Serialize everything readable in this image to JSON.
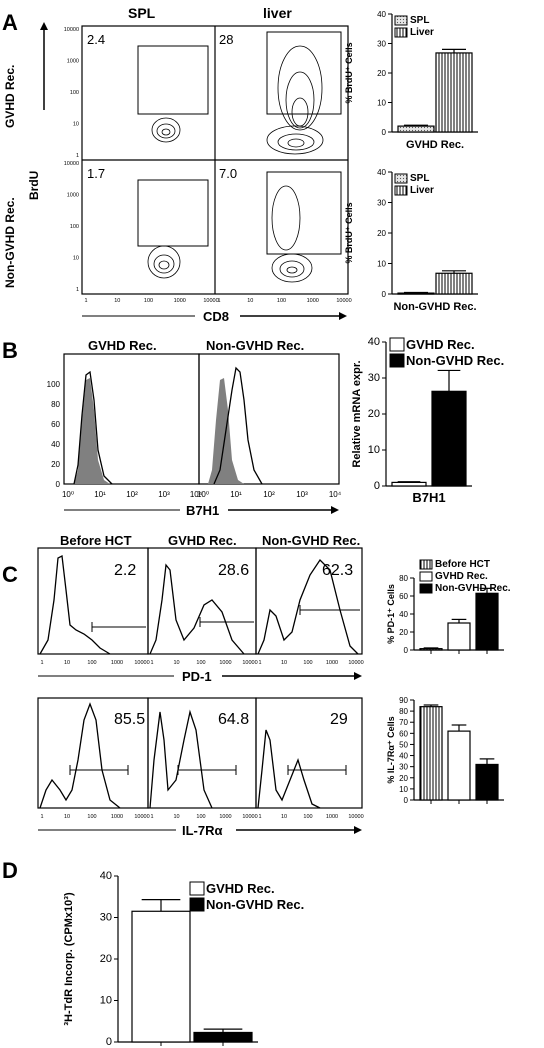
{
  "panels": {
    "A": {
      "letter": "A",
      "col_labels": [
        "SPL",
        "liver"
      ],
      "row_labels": [
        "GVHD Rec.",
        "Non-GVHD Rec."
      ],
      "y_axis_label": "BrdU",
      "x_axis_label": "CD8",
      "x_ticks": [
        "1",
        "10",
        "100",
        "1000",
        "10000"
      ],
      "y_ticks": [
        "10000",
        "1000",
        "100",
        "10",
        "1"
      ],
      "gate_pcts": [
        "2.4",
        "28",
        "1.7",
        "7.0"
      ]
    },
    "B": {
      "letter": "B",
      "col_labels": [
        "GVHD Rec.",
        "Non-GVHD Rec."
      ],
      "y_ticks": [
        "100",
        "80",
        "60",
        "40",
        "20",
        "0"
      ],
      "x_ticks": [
        "10⁰",
        "10¹",
        "10²",
        "10³",
        "10⁴",
        "10⁰",
        "10¹",
        "10²",
        "10³",
        "10⁴"
      ],
      "x_axis_label": "B7H1"
    },
    "C": {
      "letter": "C",
      "col_labels": [
        "Before HCT",
        "GVHD Rec.",
        "Non-GVHD Rec."
      ],
      "pd1_pcts": [
        "2.2",
        "28.6",
        "62.3"
      ],
      "il7_pcts": [
        "85.5",
        "64.8",
        "29"
      ],
      "pd1_label": "PD-1",
      "il7_label": "IL-7Rα",
      "x_ticks": [
        "1",
        "10",
        "100",
        "1000",
        "10000"
      ]
    },
    "D": {
      "letter": "D"
    }
  },
  "chart_data": [
    {
      "id": "A-top",
      "type": "bar",
      "categories": [
        "SPL",
        "Liver"
      ],
      "group_label": "GVHD Rec.",
      "values": [
        2,
        26.8
      ],
      "errors": [
        0.3,
        1.2
      ],
      "ylabel": "% BrdU⁺ Cells",
      "ylim": [
        0,
        40
      ],
      "yticks": [
        "0",
        "10",
        "20",
        "30",
        "40"
      ],
      "legend": [
        "SPL",
        "Liver"
      ],
      "colors": [
        "#d8d8d8",
        "#ffffff"
      ],
      "patterns": [
        "dots",
        "vlines"
      ]
    },
    {
      "id": "A-bottom",
      "type": "bar",
      "categories": [
        "SPL",
        "Liver"
      ],
      "group_label": "Non-GVHD Rec.",
      "values": [
        0.3,
        6.8
      ],
      "errors": [
        0.2,
        0.8
      ],
      "ylabel": "% BrdU⁺ Cells",
      "ylim": [
        0,
        40
      ],
      "yticks": [
        "0",
        "10",
        "20",
        "30",
        "40"
      ],
      "legend": [
        "SPL",
        "Liver"
      ],
      "colors": [
        "#d8d8d8",
        "#ffffff"
      ],
      "patterns": [
        "dots",
        "vlines"
      ]
    },
    {
      "id": "B",
      "type": "bar",
      "categories": [
        "GVHD Rec.",
        "Non-GVHD Rec."
      ],
      "group_label": "B7H1",
      "values": [
        1,
        26.3
      ],
      "errors": [
        0.2,
        5.8
      ],
      "ylabel": "Relative mRNA expr.",
      "ylim": [
        0,
        40
      ],
      "yticks": [
        "0",
        "10",
        "20",
        "30",
        "40"
      ],
      "legend": [
        "GVHD Rec.",
        "Non-GVHD Rec."
      ],
      "colors": [
        "#ffffff",
        "#000000"
      ],
      "patterns": [
        "solid",
        "solid"
      ]
    },
    {
      "id": "C-top",
      "type": "bar",
      "categories": [
        "Before HCT",
        "GVHD Rec.",
        "Non-GVHD Rec."
      ],
      "group_label": "",
      "values": [
        1.5,
        30,
        63
      ],
      "errors": [
        0.8,
        4,
        5.5
      ],
      "ylabel": "% PD-1⁺ Cells",
      "ylim": [
        0,
        80
      ],
      "yticks": [
        "0",
        "20",
        "40",
        "60",
        "80"
      ],
      "legend": [
        "Before HCT",
        "GVHD Rec.",
        "Non-GVHD Rec."
      ],
      "colors": [
        "#ffffff",
        "#ffffff",
        "#000000"
      ],
      "patterns": [
        "vlines",
        "solid",
        "solid"
      ]
    },
    {
      "id": "C-bottom",
      "type": "bar",
      "categories": [
        "Before HCT",
        "GVHD Rec.",
        "Non-GVHD Rec."
      ],
      "group_label": "",
      "values": [
        84,
        62,
        32
      ],
      "errors": [
        1.5,
        5.5,
        5
      ],
      "ylabel": "% IL-7Rα⁺ Cells",
      "ylim": [
        0,
        90
      ],
      "yticks": [
        "0",
        "10",
        "20",
        "30",
        "40",
        "50",
        "60",
        "70",
        "80",
        "90"
      ],
      "legend": [],
      "colors": [
        "#ffffff",
        "#ffffff",
        "#000000"
      ],
      "patterns": [
        "vlines",
        "solid",
        "solid"
      ]
    },
    {
      "id": "D",
      "type": "bar",
      "categories": [
        "GVHD Rec.",
        "Non-GVHD Rec."
      ],
      "group_label": "",
      "values": [
        31.5,
        2.3
      ],
      "errors": [
        2.8,
        0.8
      ],
      "ylabel": "³H-TdR Incorp. (CPMx10³)",
      "ylim": [
        0,
        40
      ],
      "yticks": [
        "0",
        "10",
        "20",
        "30",
        "40"
      ],
      "legend": [
        "GVHD Rec.",
        "Non-GVHD Rec."
      ],
      "colors": [
        "#ffffff",
        "#000000"
      ],
      "patterns": [
        "solid",
        "solid"
      ]
    }
  ]
}
